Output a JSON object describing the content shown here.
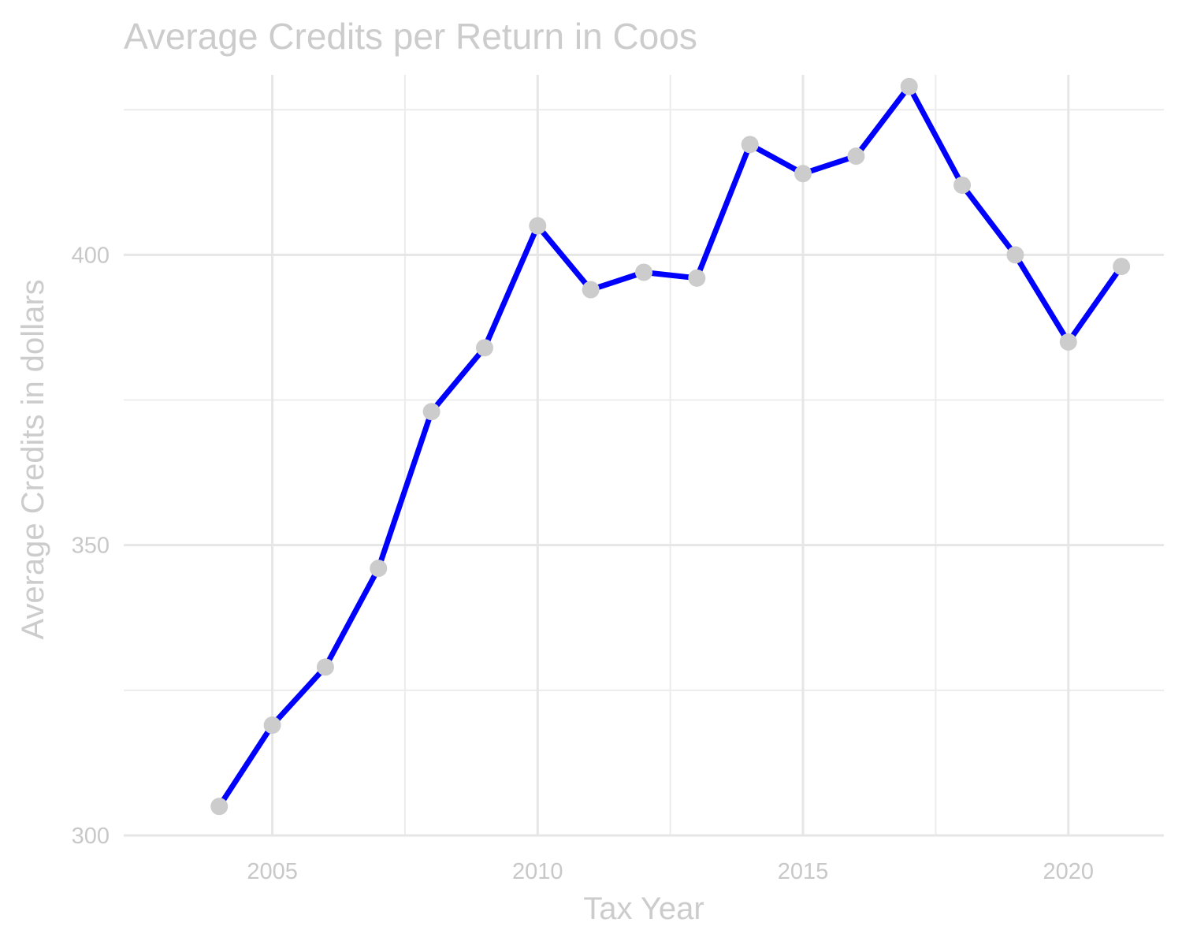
{
  "chart_data": {
    "type": "line",
    "title": "Average Credits per Return in Coos",
    "xlabel": "Tax Year",
    "ylabel": "Average Credits in dollars",
    "x": [
      2004,
      2005,
      2006,
      2007,
      2008,
      2009,
      2010,
      2011,
      2012,
      2013,
      2014,
      2015,
      2016,
      2017,
      2018,
      2019,
      2020,
      2021
    ],
    "series": [
      {
        "values": [
          305,
          319,
          329,
          346,
          373,
          384,
          405,
          394,
          397,
          396,
          419,
          414,
          417,
          429,
          412,
          400,
          385,
          398
        ]
      }
    ],
    "xlim": [
      2002.2,
      2021.8
    ],
    "ylim": [
      300,
      431
    ],
    "x_ticks": [
      2005,
      2010,
      2015,
      2020
    ],
    "x_tick_labels": [
      "2005",
      "2010",
      "2015",
      "2020"
    ],
    "y_ticks": [
      300,
      350,
      400
    ],
    "y_tick_labels": [
      "300",
      "350",
      "400"
    ],
    "y_minor_ticks": [
      325,
      375,
      425
    ],
    "x_minor_ticks": [
      2007.5,
      2012.5,
      2017.5
    ],
    "grid": true,
    "legend": "none",
    "colors": {
      "line": "#0000ff",
      "point": "#cccccc",
      "text": "#cccccc",
      "grid": "#e6e6e6"
    }
  }
}
